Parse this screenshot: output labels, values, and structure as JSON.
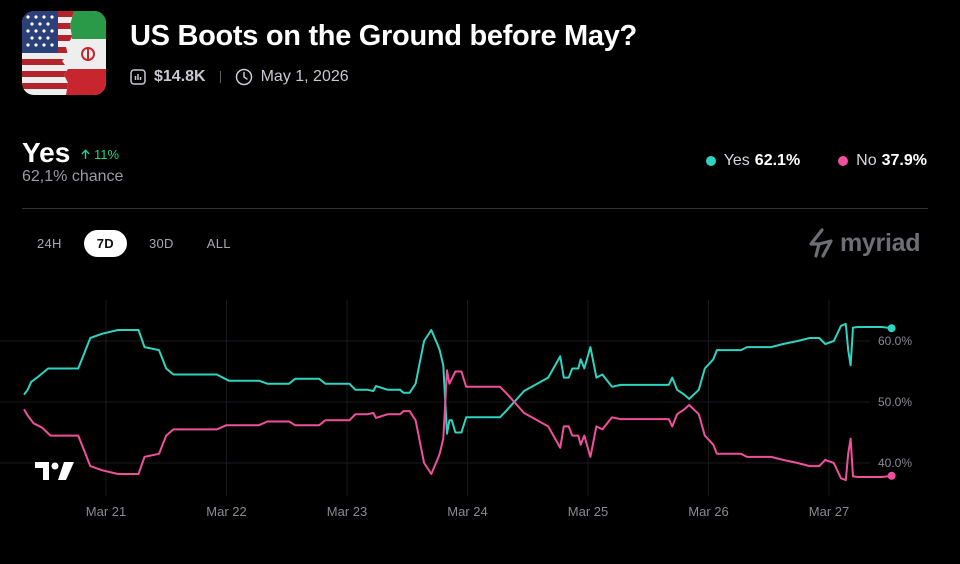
{
  "market": {
    "title": "US Boots on the Ground before May?",
    "volume": "$14.8K",
    "end_date": "May 1, 2026",
    "thumbnail_icon": "us-iran-flags-icon"
  },
  "summary": {
    "outcome": "Yes",
    "delta": "11%",
    "chance": "62,1% chance"
  },
  "legend": [
    {
      "label": "Yes",
      "value": "62.1%",
      "color": "#2dd4bf"
    },
    {
      "label": "No",
      "value": "37.9%",
      "color": "#f0509b"
    }
  ],
  "tabs": [
    {
      "label": "24H",
      "active": false
    },
    {
      "label": "7D",
      "active": true
    },
    {
      "label": "30D",
      "active": false
    },
    {
      "label": "ALL",
      "active": false
    }
  ],
  "brand": "myriad",
  "chart_data": {
    "type": "line",
    "x_labels": [
      "Mar 21",
      "Mar 22",
      "Mar 23",
      "Mar 24",
      "Mar 25",
      "Mar 26",
      "Mar 27"
    ],
    "y_ticks": [
      "40.0%",
      "50.0%",
      "60.0%"
    ],
    "ylim": [
      35,
      66
    ],
    "grid": true,
    "series": [
      {
        "name": "Yes",
        "color": "#2dd4bf",
        "points": [
          [
            0,
            51.2
          ],
          [
            0.03,
            52
          ],
          [
            0.06,
            53.3
          ],
          [
            0.12,
            54.2
          ],
          [
            0.2,
            55.5
          ],
          [
            0.45,
            55.5
          ],
          [
            0.5,
            58
          ],
          [
            0.55,
            60.5
          ],
          [
            0.65,
            61.2
          ],
          [
            0.78,
            61.8
          ],
          [
            0.95,
            61.8
          ],
          [
            1.0,
            59
          ],
          [
            1.12,
            58.5
          ],
          [
            1.18,
            55.5
          ],
          [
            1.24,
            54.5
          ],
          [
            1.6,
            54.5
          ],
          [
            1.7,
            53.5
          ],
          [
            1.95,
            53.5
          ],
          [
            2.02,
            53
          ],
          [
            2.2,
            53
          ],
          [
            2.25,
            53.8
          ],
          [
            2.45,
            53.8
          ],
          [
            2.5,
            53
          ],
          [
            2.7,
            53
          ],
          [
            2.75,
            52
          ],
          [
            2.85,
            52
          ],
          [
            2.9,
            51.8
          ],
          [
            2.92,
            52.6
          ],
          [
            3.02,
            52
          ],
          [
            3.12,
            52
          ],
          [
            3.15,
            51.5
          ],
          [
            3.2,
            51.5
          ],
          [
            3.25,
            53
          ],
          [
            3.28,
            56
          ],
          [
            3.32,
            60
          ],
          [
            3.38,
            61.8
          ],
          [
            3.43,
            59.5
          ],
          [
            3.45,
            58.5
          ],
          [
            3.48,
            56
          ],
          [
            3.51,
            44.8
          ],
          [
            3.53,
            47
          ],
          [
            3.55,
            47
          ],
          [
            3.58,
            45
          ],
          [
            3.63,
            45
          ],
          [
            3.67,
            47.5
          ],
          [
            3.95,
            47.5
          ],
          [
            4.0,
            48.5
          ],
          [
            4.15,
            51.8
          ],
          [
            4.35,
            54
          ],
          [
            4.45,
            57.5
          ],
          [
            4.48,
            54
          ],
          [
            4.52,
            54
          ],
          [
            4.55,
            55.5
          ],
          [
            4.6,
            55.5
          ],
          [
            4.62,
            57
          ],
          [
            4.65,
            55.5
          ],
          [
            4.7,
            59
          ],
          [
            4.75,
            54
          ],
          [
            4.8,
            54.5
          ],
          [
            4.88,
            52.5
          ],
          [
            4.95,
            52.8
          ],
          [
            5.35,
            52.8
          ],
          [
            5.38,
            54
          ],
          [
            5.42,
            52
          ],
          [
            5.48,
            51.2
          ],
          [
            5.52,
            50.5
          ],
          [
            5.6,
            52
          ],
          [
            5.65,
            55.5
          ],
          [
            5.72,
            57
          ],
          [
            5.75,
            58.5
          ],
          [
            5.95,
            58.5
          ],
          [
            6.0,
            59
          ],
          [
            6.2,
            59
          ],
          [
            6.3,
            59.5
          ],
          [
            6.42,
            60
          ],
          [
            6.52,
            60.5
          ],
          [
            6.6,
            60.5
          ],
          [
            6.65,
            59.5
          ],
          [
            6.72,
            60
          ],
          [
            6.78,
            62.5
          ],
          [
            6.82,
            62.8
          ],
          [
            6.84,
            58.5
          ],
          [
            6.86,
            56
          ],
          [
            6.88,
            62.2
          ],
          [
            6.92,
            62.3
          ],
          [
            7.0,
            62.3
          ],
          [
            7.12,
            62.3
          ],
          [
            7.2,
            62.1
          ]
        ]
      },
      {
        "name": "No",
        "color": "#f0509b",
        "points": [
          [
            0,
            48.8
          ],
          [
            0.03,
            47.8
          ],
          [
            0.08,
            46.5
          ],
          [
            0.15,
            45.8
          ],
          [
            0.22,
            44.5
          ],
          [
            0.45,
            44.5
          ],
          [
            0.5,
            42
          ],
          [
            0.55,
            39.5
          ],
          [
            0.65,
            38.8
          ],
          [
            0.78,
            38.2
          ],
          [
            0.95,
            38.2
          ],
          [
            1.0,
            41
          ],
          [
            1.12,
            41.5
          ],
          [
            1.18,
            44.5
          ],
          [
            1.24,
            45.5
          ],
          [
            1.6,
            45.5
          ],
          [
            1.68,
            46.2
          ],
          [
            1.95,
            46.2
          ],
          [
            2.02,
            46.8
          ],
          [
            2.2,
            46.8
          ],
          [
            2.25,
            46.2
          ],
          [
            2.45,
            46.2
          ],
          [
            2.5,
            47
          ],
          [
            2.7,
            47
          ],
          [
            2.75,
            48
          ],
          [
            2.85,
            48
          ],
          [
            2.9,
            48.2
          ],
          [
            2.92,
            47.4
          ],
          [
            3.02,
            48
          ],
          [
            3.12,
            48
          ],
          [
            3.15,
            48.5
          ],
          [
            3.2,
            48.5
          ],
          [
            3.25,
            47
          ],
          [
            3.28,
            44
          ],
          [
            3.32,
            40
          ],
          [
            3.38,
            38.2
          ],
          [
            3.43,
            40.5
          ],
          [
            3.45,
            41.5
          ],
          [
            3.48,
            44
          ],
          [
            3.51,
            55.2
          ],
          [
            3.53,
            53
          ],
          [
            3.58,
            55
          ],
          [
            3.63,
            55
          ],
          [
            3.67,
            52.5
          ],
          [
            3.95,
            52.5
          ],
          [
            4.0,
            51.5
          ],
          [
            4.15,
            48.2
          ],
          [
            4.35,
            46
          ],
          [
            4.45,
            42.5
          ],
          [
            4.48,
            46
          ],
          [
            4.52,
            46
          ],
          [
            4.55,
            44.5
          ],
          [
            4.6,
            44.5
          ],
          [
            4.62,
            43
          ],
          [
            4.65,
            44.5
          ],
          [
            4.7,
            41
          ],
          [
            4.75,
            46
          ],
          [
            4.8,
            45.5
          ],
          [
            4.88,
            47.5
          ],
          [
            4.95,
            47.2
          ],
          [
            5.35,
            47.2
          ],
          [
            5.38,
            46
          ],
          [
            5.42,
            48
          ],
          [
            5.48,
            48.8
          ],
          [
            5.52,
            49.5
          ],
          [
            5.6,
            48
          ],
          [
            5.65,
            44.5
          ],
          [
            5.72,
            43
          ],
          [
            5.75,
            41.5
          ],
          [
            5.95,
            41.5
          ],
          [
            6.0,
            41
          ],
          [
            6.2,
            41
          ],
          [
            6.3,
            40.5
          ],
          [
            6.42,
            40
          ],
          [
            6.52,
            39.5
          ],
          [
            6.6,
            39.5
          ],
          [
            6.65,
            40.5
          ],
          [
            6.72,
            40
          ],
          [
            6.78,
            37.5
          ],
          [
            6.82,
            37.2
          ],
          [
            6.84,
            41.5
          ],
          [
            6.86,
            44
          ],
          [
            6.88,
            37.8
          ],
          [
            6.92,
            37.7
          ],
          [
            7.0,
            37.7
          ],
          [
            7.12,
            37.7
          ],
          [
            7.2,
            37.9
          ]
        ]
      }
    ]
  }
}
